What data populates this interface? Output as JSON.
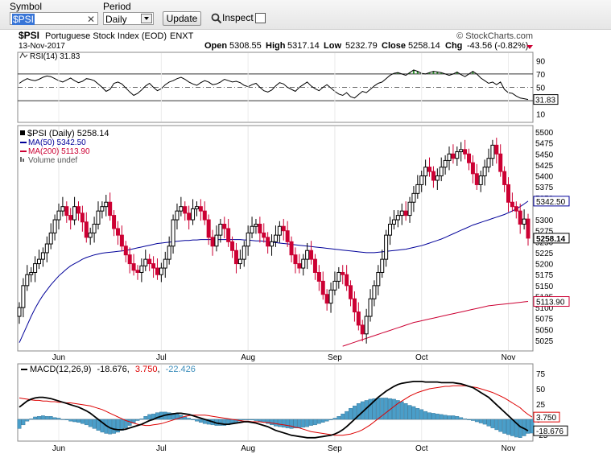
{
  "toolbar": {
    "symbol_label": "Symbol",
    "symbol_value": "$PSI",
    "period_label": "Period",
    "period_value": "Daily",
    "update_label": "Update",
    "inspect_label": "Inspect"
  },
  "header": {
    "title_symbol": "$PSI",
    "title_name": "Portuguese Stock Index (EOD)",
    "exchange": "ENXT",
    "date": "13-Nov-2017",
    "watermark": "© StockCharts.com",
    "open_label": "Open",
    "open_value": "5308.55",
    "high_label": "High",
    "high_value": "5317.14",
    "low_label": "Low",
    "low_value": "5232.79",
    "close_label": "Close",
    "close_value": "5258.14",
    "chg_label": "Chg",
    "chg_value": "-43.56 (-0.82%)"
  },
  "colors": {
    "up": "#000000",
    "down": "#cc0033",
    "ma50": "#000099",
    "ma200": "#cc0033",
    "macd": "#000000",
    "signal": "#dd0000",
    "histogram": "#4a9ec9"
  },
  "chart_data": [
    {
      "type": "line",
      "name": "rsi-panel",
      "legend": "RSI(14) 31.83",
      "ylim": [
        0,
        100
      ],
      "yticks": [
        "90",
        "70",
        "50",
        "30",
        "10"
      ],
      "last_label": "31.83",
      "values": [
        56,
        60,
        63,
        61,
        60,
        62,
        65,
        67,
        66,
        63,
        60,
        58,
        61,
        64,
        60,
        57,
        59,
        63,
        62,
        60,
        55,
        50,
        44,
        47,
        56,
        58,
        55,
        49,
        43,
        38,
        41,
        46,
        52,
        56,
        50,
        45,
        48,
        54,
        58,
        60,
        63,
        65,
        62,
        58,
        55,
        53,
        57,
        60,
        58,
        54,
        55,
        58,
        62,
        60,
        58,
        59,
        57,
        53,
        51,
        54,
        56,
        50,
        45,
        43,
        46,
        52,
        57,
        55,
        50,
        47,
        44,
        50,
        54,
        58,
        52,
        48,
        45,
        50,
        54,
        49,
        44,
        40,
        38,
        42,
        36,
        34,
        39,
        44,
        42,
        47,
        52,
        56,
        58,
        63,
        68,
        71,
        72,
        70,
        68,
        72,
        76,
        74,
        71,
        70,
        72,
        74,
        73,
        72,
        70,
        68,
        70,
        73,
        69,
        66,
        70,
        74,
        70,
        64,
        60,
        56,
        58,
        54,
        58,
        47,
        42,
        41,
        37,
        34,
        33,
        31.83
      ]
    },
    {
      "type": "candlestick",
      "name": "price-panel",
      "legend": [
        "$PSI (Daily) 5258.14",
        "MA(50) 5342.50",
        "MA(200) 5113.90",
        "Volume undef"
      ],
      "x_labels": [
        "Jun",
        "Jul",
        "Aug",
        "Sep",
        "Oct",
        "Nov"
      ],
      "ylim": [
        5010,
        5510
      ],
      "yticks": [
        "5500",
        "5475",
        "5450",
        "5425",
        "5400",
        "5375",
        "5350",
        "5300",
        "5275",
        "5250",
        "5225",
        "5200",
        "5175",
        "5150",
        "5125",
        "5100",
        "5075",
        "5050",
        "5025"
      ],
      "last_labels": {
        "ma50": "5342.50",
        "close": "5258.14",
        "ma200": "5113.90"
      },
      "close": [
        5100,
        5150,
        5175,
        5180,
        5200,
        5210,
        5225,
        5245,
        5270,
        5300,
        5320,
        5330,
        5310,
        5300,
        5330,
        5315,
        5295,
        5260,
        5270,
        5290,
        5320,
        5330,
        5340,
        5310,
        5280,
        5265,
        5240,
        5220,
        5200,
        5185,
        5180,
        5195,
        5210,
        5200,
        5190,
        5175,
        5190,
        5210,
        5240,
        5300,
        5320,
        5330,
        5315,
        5300,
        5325,
        5330,
        5320,
        5300,
        5260,
        5240,
        5265,
        5290,
        5280,
        5250,
        5230,
        5200,
        5210,
        5240,
        5270,
        5285,
        5290,
        5270,
        5260,
        5240,
        5250,
        5265,
        5285,
        5275,
        5250,
        5220,
        5200,
        5190,
        5210,
        5230,
        5210,
        5180,
        5160,
        5130,
        5110,
        5140,
        5160,
        5180,
        5175,
        5150,
        5120,
        5090,
        5060,
        5040,
        5080,
        5120,
        5150,
        5180,
        5210,
        5265,
        5290,
        5300,
        5310,
        5320,
        5310,
        5340,
        5360,
        5380,
        5400,
        5420,
        5410,
        5390,
        5400,
        5420,
        5435,
        5450,
        5440,
        5455,
        5460,
        5450,
        5430,
        5405,
        5380,
        5400,
        5420,
        5440,
        5470,
        5450,
        5410,
        5380,
        5340,
        5330,
        5320,
        5290,
        5301.7,
        5258.14
      ],
      "ma50": [
        5020,
        5040,
        5060,
        5080,
        5098,
        5114,
        5128,
        5140,
        5152,
        5162,
        5172,
        5180,
        5188,
        5195,
        5200,
        5205,
        5210,
        5214,
        5217,
        5220,
        5222,
        5224,
        5225,
        5226,
        5227,
        5228,
        5229,
        5230,
        5232,
        5234,
        5236,
        5238,
        5240,
        5242,
        5244,
        5246,
        5247,
        5248,
        5249,
        5250,
        5251,
        5252,
        5253,
        5253,
        5254,
        5254,
        5255,
        5255,
        5255,
        5255,
        5255,
        5255,
        5255,
        5255,
        5255,
        5255,
        5255,
        5254,
        5254,
        5253,
        5252,
        5252,
        5251,
        5250,
        5249,
        5248,
        5247,
        5246,
        5245,
        5244,
        5243,
        5242,
        5241,
        5240,
        5239,
        5238,
        5237,
        5236,
        5235,
        5234,
        5233,
        5232,
        5231,
        5230,
        5229,
        5228,
        5227,
        5226,
        5225,
        5225,
        5225,
        5226,
        5227,
        5228,
        5229,
        5230,
        5231,
        5232,
        5233,
        5235,
        5237,
        5239,
        5241,
        5244,
        5247,
        5250,
        5253,
        5256,
        5260,
        5264,
        5268,
        5272,
        5276,
        5280,
        5284,
        5288,
        5291,
        5294,
        5297,
        5300,
        5303,
        5306,
        5309,
        5312,
        5316,
        5320,
        5325,
        5330,
        5336,
        5342.5
      ],
      "ma200": [
        null,
        null,
        null,
        null,
        null,
        null,
        null,
        null,
        null,
        null,
        null,
        null,
        null,
        null,
        null,
        null,
        null,
        null,
        null,
        null,
        null,
        null,
        null,
        null,
        null,
        null,
        null,
        null,
        null,
        null,
        null,
        null,
        null,
        null,
        null,
        null,
        null,
        null,
        null,
        null,
        null,
        null,
        null,
        null,
        null,
        null,
        null,
        null,
        null,
        null,
        null,
        null,
        null,
        null,
        null,
        null,
        null,
        null,
        null,
        null,
        null,
        null,
        null,
        null,
        null,
        null,
        null,
        null,
        null,
        null,
        null,
        null,
        null,
        null,
        null,
        null,
        null,
        null,
        null,
        null,
        null,
        null,
        5012,
        5015,
        5018,
        5021,
        5024,
        5027,
        5030,
        5033,
        5036,
        5039,
        5042,
        5045,
        5048,
        5051,
        5054,
        5057,
        5060,
        5063,
        5066,
        5068,
        5070,
        5072,
        5074,
        5076,
        5078,
        5080,
        5082,
        5084,
        5086,
        5088,
        5090,
        5092,
        5094,
        5096,
        5098,
        5100,
        5102,
        5104,
        5105,
        5106,
        5107,
        5108,
        5109,
        5110,
        5111,
        5112,
        5113,
        5113.9
      ]
    },
    {
      "type": "line",
      "name": "macd-panel",
      "legend": {
        "name": "MACD(12,26,9)",
        "macd": "-18.676",
        "signal": "3.750",
        "hist": "-22.426"
      },
      "ylim": [
        -40,
        85
      ],
      "yticks": [
        "75",
        "50",
        "25",
        "0",
        "-25"
      ],
      "last_labels": {
        "signal": "3.750",
        "macd": "-18.676"
      },
      "macd": [
        20,
        25,
        30,
        33,
        35,
        36,
        36,
        35,
        34,
        32,
        30,
        28,
        26,
        24,
        22,
        20,
        17,
        14,
        10,
        5,
        0,
        -5,
        -10,
        -14,
        -16,
        -17,
        -17,
        -16,
        -14,
        -12,
        -10,
        -8,
        -5,
        -2,
        0,
        3,
        5,
        7,
        8,
        9,
        10,
        10,
        9,
        8,
        6,
        4,
        2,
        0,
        -2,
        -4,
        -6,
        -7,
        -8,
        -8,
        -7,
        -6,
        -5,
        -4,
        -4,
        -5,
        -6,
        -8,
        -10,
        -12,
        -15,
        -18,
        -20,
        -22,
        -24,
        -26,
        -27,
        -28,
        -29,
        -30,
        -30,
        -30,
        -29,
        -28,
        -27,
        -26,
        -24,
        -21,
        -17,
        -12,
        -6,
        0,
        6,
        12,
        18,
        24,
        30,
        36,
        41,
        46,
        50,
        54,
        57,
        59,
        60,
        61,
        62,
        62,
        62,
        61,
        61,
        61,
        61,
        60,
        60,
        60,
        60,
        59,
        58,
        56,
        54,
        52,
        48,
        44,
        40,
        36,
        30,
        24,
        18,
        12,
        6,
        0,
        -6,
        -12,
        -15,
        -18.676
      ],
      "signal": [
        35,
        34,
        33,
        32,
        31,
        31,
        30,
        30,
        29,
        29,
        28,
        28,
        27,
        27,
        26,
        25,
        24,
        23,
        22,
        20,
        18,
        16,
        13,
        10,
        7,
        4,
        1,
        -2,
        -4,
        -6,
        -8,
        -9,
        -10,
        -10,
        -9,
        -8,
        -7,
        -5,
        -3,
        -1,
        1,
        3,
        5,
        6,
        7,
        7,
        7,
        7,
        6,
        5,
        4,
        3,
        2,
        1,
        0,
        -1,
        -2,
        -3,
        -3,
        -4,
        -4,
        -4,
        -5,
        -5,
        -6,
        -7,
        -8,
        -9,
        -10,
        -11,
        -13,
        -14,
        -16,
        -18,
        -20,
        -21,
        -22,
        -23,
        -24,
        -25,
        -26,
        -26,
        -26,
        -25,
        -24,
        -22,
        -20,
        -17,
        -13,
        -9,
        -4,
        1,
        6,
        11,
        16,
        21,
        26,
        30,
        34,
        38,
        41,
        44,
        46,
        48,
        50,
        51,
        52,
        53,
        54,
        54,
        55,
        55,
        55,
        55,
        54,
        53,
        52,
        50,
        48,
        46,
        44,
        41,
        38,
        35,
        31,
        27,
        23,
        19,
        13,
        8,
        3.75
      ],
      "histogram": [
        -15,
        -9,
        -3,
        1,
        4,
        5,
        6,
        5,
        5,
        3,
        2,
        0,
        -1,
        -3,
        -4,
        -5,
        -7,
        -9,
        -12,
        -15,
        -18,
        -21,
        -23,
        -24,
        -23,
        -21,
        -18,
        -14,
        -10,
        -6,
        -2,
        1,
        5,
        8,
        9,
        11,
        12,
        12,
        11,
        10,
        9,
        7,
        4,
        2,
        -1,
        -3,
        -5,
        -7,
        -8,
        -9,
        -10,
        -10,
        -10,
        -9,
        -7,
        -5,
        -3,
        -1,
        -1,
        -1,
        -2,
        -4,
        -5,
        -7,
        -9,
        -11,
        -12,
        -13,
        -14,
        -15,
        -14,
        -14,
        -13,
        -12,
        -10,
        -9,
        -7,
        -5,
        -3,
        -1,
        2,
        5,
        9,
        13,
        18,
        22,
        26,
        29,
        31,
        33,
        34,
        35,
        35,
        35,
        34,
        33,
        31,
        29,
        26,
        23,
        21,
        18,
        16,
        13,
        11,
        10,
        9,
        8,
        7,
        6,
        6,
        5,
        3,
        1,
        -1,
        -2,
        -4,
        -6,
        -8,
        -11,
        -14,
        -17,
        -20,
        -23,
        -25,
        -27,
        -29,
        -30,
        -27,
        -23,
        -22.426
      ]
    }
  ]
}
